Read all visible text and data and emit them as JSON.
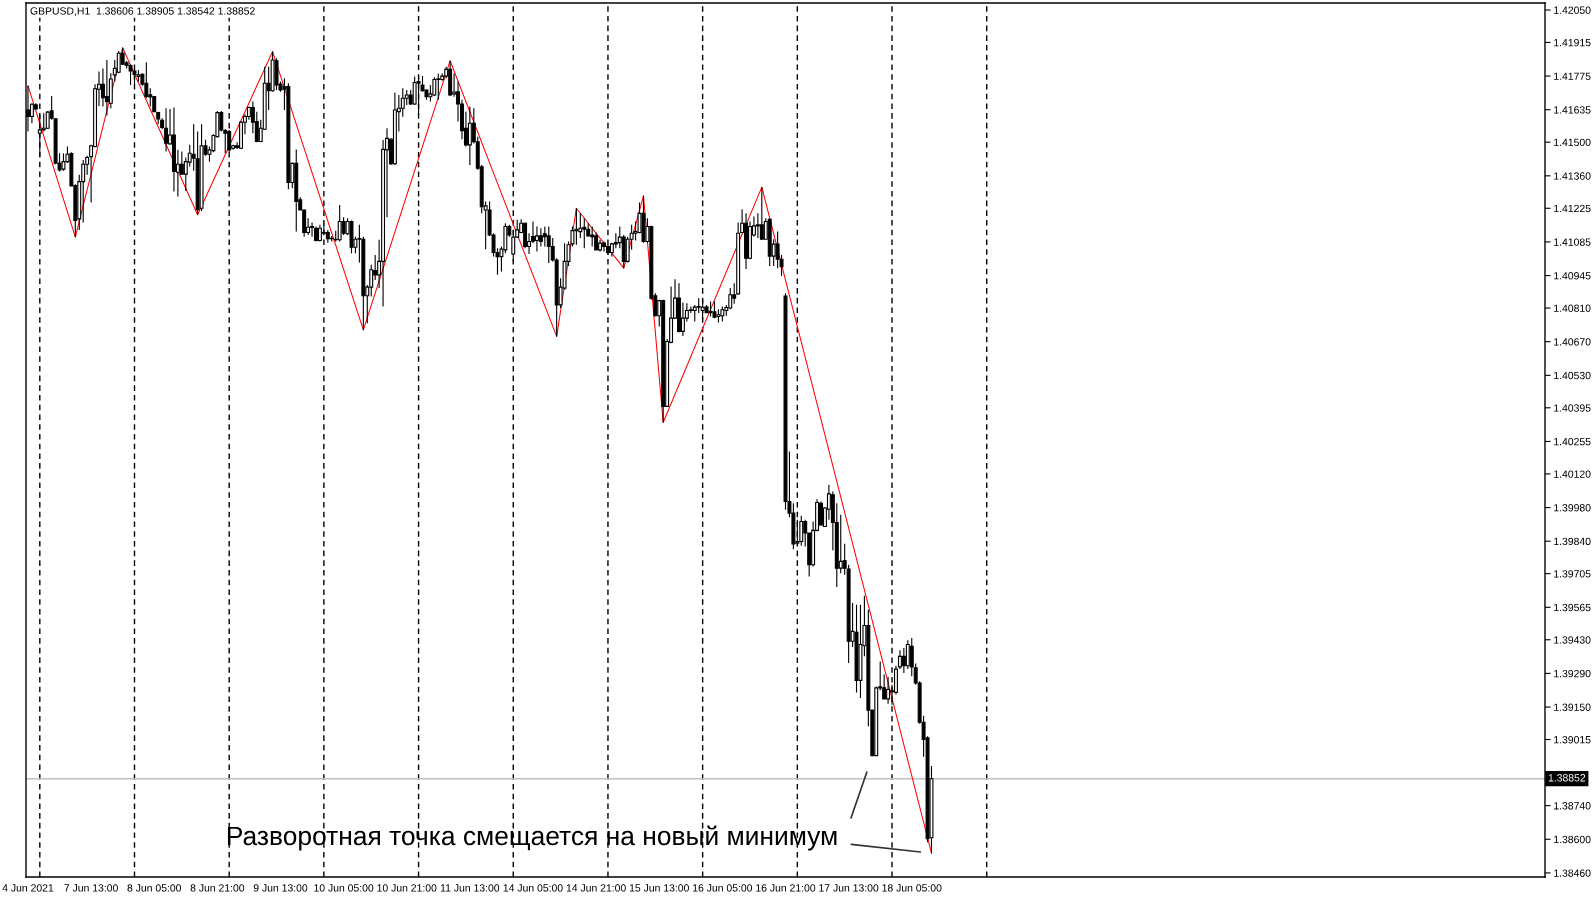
{
  "chart_data": {
    "type": "candlestick",
    "title": "GBPUSD,H1  1.38606 1.38905 1.38542 1.38852",
    "categories": [
      "4 Jun 2021",
      null,
      null,
      null,
      null,
      null,
      null,
      null,
      null,
      null,
      null,
      null,
      null,
      null,
      null,
      null,
      "7 Jun 13:00",
      null,
      null,
      null,
      null,
      null,
      null,
      null,
      null,
      null,
      null,
      null,
      null,
      null,
      null,
      null,
      "8 Jun 05:00",
      null,
      null,
      null,
      null,
      null,
      null,
      null,
      null,
      null,
      null,
      null,
      null,
      null,
      null,
      null,
      "8 Jun 21:00",
      null,
      null,
      null,
      null,
      null,
      null,
      null,
      null,
      null,
      null,
      null,
      null,
      null,
      null,
      null,
      "9 Jun 13:00",
      null,
      null,
      null,
      null,
      null,
      null,
      null,
      null,
      null,
      null,
      null,
      null,
      null,
      null,
      null,
      "10 Jun 05:00",
      null,
      null,
      null,
      null,
      null,
      null,
      null,
      null,
      null,
      null,
      null,
      null,
      null,
      null,
      null,
      "10 Jun 21:00",
      null,
      null,
      null,
      null,
      null,
      null,
      null,
      null,
      null,
      null,
      null,
      null,
      null,
      null,
      null,
      "11 Jun 13:00",
      null,
      null,
      null,
      null,
      null,
      null,
      null,
      null,
      null,
      null,
      null,
      null,
      null,
      null,
      null,
      "14 Jun 05:00",
      null,
      null,
      null,
      null,
      null,
      null,
      null,
      null,
      null,
      null,
      null,
      null,
      null,
      null,
      null,
      "14 Jun 21:00",
      null,
      null,
      null,
      null,
      null,
      null,
      null,
      null,
      null,
      null,
      null,
      null,
      null,
      null,
      null,
      "15 Jun 13:00",
      null,
      null,
      null,
      null,
      null,
      null,
      null,
      null,
      null,
      null,
      null,
      null,
      null,
      null,
      null,
      "16 Jun 05:00",
      null,
      null,
      null,
      null,
      null,
      null,
      null,
      null,
      null,
      null,
      null,
      null,
      null,
      null,
      null,
      "16 Jun 21:00",
      null,
      null,
      null,
      null,
      null,
      null,
      null,
      null,
      null,
      null,
      null,
      null,
      null,
      null,
      null,
      "17 Jun 13:00",
      null,
      null,
      null,
      null,
      null,
      null,
      null,
      null,
      null,
      null,
      null,
      null,
      null,
      null,
      null,
      "18 Jun 05:00",
      null,
      null,
      null,
      null,
      null,
      null,
      null,
      null,
      null,
      null,
      null,
      null,
      null,
      null,
      null,
      null,
      null,
      null,
      null,
      null,
      null,
      null,
      null,
      null,
      null,
      null,
      null,
      null,
      null,
      null,
      null,
      null,
      null,
      null,
      null,
      null,
      null,
      null,
      null,
      null,
      null,
      null,
      null,
      null,
      null,
      null,
      null,
      null,
      null,
      null,
      null,
      null,
      null,
      null,
      null,
      null,
      null,
      null,
      null,
      null,
      null,
      null,
      null,
      null,
      null,
      null,
      null,
      null,
      null,
      null,
      null,
      null,
      null,
      null,
      null,
      null,
      null,
      null,
      null,
      null,
      null,
      null,
      null,
      null,
      null,
      null,
      null,
      null,
      null,
      null,
      null,
      null,
      null,
      null,
      null,
      null,
      null,
      null,
      null,
      null,
      null,
      null,
      null,
      null,
      null,
      null,
      null,
      null,
      null,
      null,
      null,
      null,
      null,
      null,
      null,
      null,
      null,
      null,
      null,
      null,
      null,
      null,
      null,
      null,
      null,
      null,
      null,
      null,
      null,
      null,
      null,
      null,
      null,
      null,
      null,
      null,
      null,
      null,
      null,
      null,
      null,
      null,
      null,
      null,
      null,
      null,
      null,
      null,
      null,
      null,
      null,
      null,
      null,
      null,
      null,
      null,
      null,
      null,
      null,
      null
    ],
    "ohlc": [
      [
        1.41634,
        1.41735,
        1.41544,
        1.41607
      ],
      [
        1.41607,
        1.41662,
        1.41579,
        1.41658
      ],
      [
        1.41655,
        1.41662,
        1.41634,
        1.41638
      ],
      [
        1.41537,
        1.41613,
        1.4144,
        1.41551
      ],
      [
        1.41552,
        1.4162,
        1.41544,
        1.41558
      ],
      [
        1.41558,
        1.4163,
        1.41555,
        1.41625
      ],
      [
        1.4163,
        1.41692,
        1.41593,
        1.416
      ],
      [
        1.41597,
        1.416,
        1.41408,
        1.41413
      ],
      [
        1.41413,
        1.41454,
        1.41378,
        1.41385
      ],
      [
        1.41388,
        1.41454,
        1.41381,
        1.41419
      ],
      [
        1.41419,
        1.41482,
        1.41413,
        1.4145
      ],
      [
        1.41453,
        1.41458,
        1.41316,
        1.41318
      ],
      [
        1.4132,
        1.41325,
        1.41105,
        1.41174
      ],
      [
        1.41181,
        1.41364,
        1.41135,
        1.41336
      ],
      [
        1.41336,
        1.41426,
        1.41166,
        1.41408
      ],
      [
        1.41408,
        1.41444,
        1.41364,
        1.41436
      ],
      [
        1.4144,
        1.41489,
        1.41249,
        1.41485
      ],
      [
        1.41482,
        1.41741,
        1.41478,
        1.41722
      ],
      [
        1.4172,
        1.41794,
        1.41651,
        1.41741
      ],
      [
        1.41741,
        1.41807,
        1.41648,
        1.41685
      ],
      [
        1.4169,
        1.41842,
        1.41611,
        1.41669
      ],
      [
        1.41662,
        1.41787,
        1.41641,
        1.41763
      ],
      [
        1.4178,
        1.41842,
        1.41752,
        1.41807
      ],
      [
        1.41791,
        1.41879,
        1.41787,
        1.4187
      ],
      [
        1.4187,
        1.41893,
        1.41821,
        1.41824
      ],
      [
        1.4183,
        1.41838,
        1.41807,
        1.41819
      ],
      [
        1.41819,
        1.41824,
        1.41738,
        1.41796
      ],
      [
        1.41796,
        1.41807,
        1.41741,
        1.41782
      ],
      [
        1.41773,
        1.418,
        1.41752,
        1.4178
      ],
      [
        1.41782,
        1.41787,
        1.41735,
        1.41741
      ],
      [
        1.41745,
        1.41832,
        1.41683,
        1.4169
      ],
      [
        1.41697,
        1.41724,
        1.41648,
        1.41688
      ],
      [
        1.4169,
        1.41692,
        1.41625,
        1.41627
      ],
      [
        1.41623,
        1.41627,
        1.41575,
        1.41597
      ],
      [
        1.41591,
        1.416,
        1.41555,
        1.41561
      ],
      [
        1.41558,
        1.41641,
        1.41461,
        1.41496
      ],
      [
        1.41493,
        1.41638,
        1.41489,
        1.4153
      ],
      [
        1.4153,
        1.41644,
        1.41295,
        1.41378
      ],
      [
        1.41375,
        1.41468,
        1.41274,
        1.41408
      ],
      [
        1.41408,
        1.41461,
        1.41364,
        1.41367
      ],
      [
        1.41367,
        1.41436,
        1.41297,
        1.41419
      ],
      [
        1.41417,
        1.41489,
        1.41399,
        1.41454
      ],
      [
        1.4145,
        1.41575,
        1.41381,
        1.41433
      ],
      [
        1.41431,
        1.41544,
        1.41198,
        1.41219
      ],
      [
        1.41225,
        1.41575,
        1.41214,
        1.41485
      ],
      [
        1.41485,
        1.4151,
        1.41444,
        1.4145
      ],
      [
        1.4145,
        1.41482,
        1.41419,
        1.41468
      ],
      [
        1.41465,
        1.41533,
        1.41458,
        1.41528
      ],
      [
        1.41523,
        1.4163,
        1.41519,
        1.41623
      ],
      [
        1.41623,
        1.4163,
        1.41544,
        1.41551
      ],
      [
        1.41548,
        1.41555,
        1.41454,
        1.41537
      ],
      [
        1.41544,
        1.41551,
        1.41458,
        1.41468
      ],
      [
        1.41475,
        1.41489,
        1.41468,
        1.41485
      ],
      [
        1.41485,
        1.415,
        1.41472,
        1.41478
      ],
      [
        1.41475,
        1.41588,
        1.41472,
        1.41583
      ],
      [
        1.41583,
        1.41616,
        1.41533,
        1.41607
      ],
      [
        1.41607,
        1.41648,
        1.41593,
        1.41644
      ],
      [
        1.41644,
        1.41669,
        1.41537,
        1.41583
      ],
      [
        1.41586,
        1.41627,
        1.415,
        1.41503
      ],
      [
        1.41503,
        1.41593,
        1.415,
        1.41558
      ],
      [
        1.41554,
        1.41814,
        1.41551,
        1.41745
      ],
      [
        1.41745,
        1.41814,
        1.41634,
        1.41714
      ],
      [
        1.41714,
        1.41877,
        1.4171,
        1.41842
      ],
      [
        1.41839,
        1.41849,
        1.41717,
        1.41738
      ],
      [
        1.41742,
        1.41752,
        1.4171,
        1.41717
      ],
      [
        1.41731,
        1.41766,
        1.41634,
        1.4172
      ],
      [
        1.41731,
        1.41745,
        1.41304,
        1.41332
      ],
      [
        1.41332,
        1.41415,
        1.41308,
        1.41412
      ],
      [
        1.41412,
        1.4147,
        1.41128,
        1.41253
      ],
      [
        1.4126,
        1.41271,
        1.41216,
        1.41218
      ],
      [
        1.41218,
        1.41221,
        1.41107,
        1.41124
      ],
      [
        1.41124,
        1.41184,
        1.41114,
        1.41146
      ],
      [
        1.41145,
        1.41166,
        1.41107,
        1.41149
      ],
      [
        1.41142,
        1.41149,
        1.41087,
        1.41091
      ],
      [
        1.41091,
        1.41156,
        1.41087,
        1.41142
      ],
      [
        1.41124,
        1.41156,
        1.41119,
        1.41121
      ],
      [
        1.41124,
        1.41135,
        1.41082,
        1.41098
      ],
      [
        1.411,
        1.4111,
        1.41087,
        1.41098
      ],
      [
        1.41096,
        1.41132,
        1.41087,
        1.41094
      ],
      [
        1.41094,
        1.41239,
        1.41087,
        1.4117
      ],
      [
        1.4117,
        1.41188,
        1.41114,
        1.41121
      ],
      [
        1.41119,
        1.41184,
        1.41114,
        1.4117
      ],
      [
        1.4117,
        1.41174,
        1.41038,
        1.41063
      ],
      [
        1.41063,
        1.41107,
        1.41038,
        1.41096
      ],
      [
        1.41096,
        1.41156,
        1.40999,
        1.41099
      ],
      [
        1.41096,
        1.41107,
        1.40719,
        1.40861
      ],
      [
        1.40861,
        1.40906,
        1.40747,
        1.40897
      ],
      [
        1.40897,
        1.4099,
        1.40858,
        1.40969
      ],
      [
        1.40966,
        1.41031,
        1.40927,
        1.40948
      ],
      [
        1.40948,
        1.41094,
        1.40893,
        1.41004
      ],
      [
        1.41004,
        1.41509,
        1.40816,
        1.4147
      ],
      [
        1.41468,
        1.41558,
        1.41188,
        1.41516
      ],
      [
        1.41512,
        1.41516,
        1.41405,
        1.4141
      ],
      [
        1.4141,
        1.41706,
        1.41405,
        1.41634
      ],
      [
        1.41627,
        1.41696,
        1.41544,
        1.41641
      ],
      [
        1.41641,
        1.41724,
        1.41606,
        1.41683
      ],
      [
        1.41683,
        1.41717,
        1.41655,
        1.41696
      ],
      [
        1.41696,
        1.41717,
        1.41655,
        1.41659
      ],
      [
        1.41659,
        1.41773,
        1.41655,
        1.41748
      ],
      [
        1.41752,
        1.41775,
        1.41617,
        1.41745
      ],
      [
        1.41738,
        1.41775,
        1.4171,
        1.41714
      ],
      [
        1.41717,
        1.4172,
        1.41676,
        1.41689
      ],
      [
        1.41689,
        1.41738,
        1.41669,
        1.41701
      ],
      [
        1.41696,
        1.4177,
        1.41692,
        1.41761
      ],
      [
        1.41761,
        1.41786,
        1.41676,
        1.41764
      ],
      [
        1.41761,
        1.41786,
        1.41756,
        1.41775
      ],
      [
        1.41775,
        1.41814,
        1.41766,
        1.41803
      ],
      [
        1.41803,
        1.41839,
        1.41692,
        1.41696
      ],
      [
        1.41701,
        1.41786,
        1.41689,
        1.41709
      ],
      [
        1.4171,
        1.41752,
        1.41586,
        1.41659
      ],
      [
        1.41659,
        1.41676,
        1.41512,
        1.41548
      ],
      [
        1.41558,
        1.41627,
        1.41482,
        1.41489
      ],
      [
        1.41489,
        1.41648,
        1.41405,
        1.41579
      ],
      [
        1.41579,
        1.41641,
        1.41495,
        1.41502
      ],
      [
        1.41502,
        1.41523,
        1.41385,
        1.41392
      ],
      [
        1.41398,
        1.41405,
        1.41204,
        1.41232
      ],
      [
        1.41218,
        1.41253,
        1.41055,
        1.41235
      ],
      [
        1.41218,
        1.41253,
        1.4111,
        1.41114
      ],
      [
        1.41114,
        1.41121,
        1.41024,
        1.41041
      ],
      [
        1.41041,
        1.41059,
        1.40948,
        1.41024
      ],
      [
        1.41024,
        1.41066,
        1.40962,
        1.41055
      ],
      [
        1.41052,
        1.41163,
        1.41038,
        1.41149
      ],
      [
        1.41149,
        1.41156,
        1.41107,
        1.41114
      ],
      [
        1.41035,
        1.41135,
        1.41004,
        1.41105
      ],
      [
        1.41105,
        1.41177,
        1.41101,
        1.41135
      ],
      [
        1.41124,
        1.41179,
        1.41121,
        1.41163
      ],
      [
        1.41163,
        1.41166,
        1.41059,
        1.41066
      ],
      [
        1.41066,
        1.41121,
        1.41035,
        1.41087
      ],
      [
        1.41107,
        1.4117,
        1.4108,
        1.41088
      ],
      [
        1.41091,
        1.41149,
        1.41045,
        1.4111
      ],
      [
        1.4111,
        1.41142,
        1.41066,
        1.41087
      ],
      [
        1.41119,
        1.41149,
        1.41066,
        1.41107
      ],
      [
        1.4111,
        1.41149,
        1.40997,
        1.41066
      ],
      [
        1.41066,
        1.41101,
        1.41004,
        1.4101
      ],
      [
        1.4101,
        1.41017,
        1.40692,
        1.40823
      ],
      [
        1.40823,
        1.40934,
        1.4081,
        1.40897
      ],
      [
        1.40893,
        1.4108,
        1.40886,
        1.41004
      ],
      [
        1.41004,
        1.41087,
        1.40985,
        1.41073
      ],
      [
        1.41077,
        1.41149,
        1.41066,
        1.41132
      ],
      [
        1.41132,
        1.41225,
        1.41073,
        1.41138
      ],
      [
        1.41128,
        1.41204,
        1.41101,
        1.41142
      ],
      [
        1.41146,
        1.41184,
        1.41059,
        1.41138
      ],
      [
        1.41138,
        1.41163,
        1.41107,
        1.4111
      ],
      [
        1.41114,
        1.41149,
        1.41066,
        1.41107
      ],
      [
        1.4111,
        1.41124,
        1.41049,
        1.41052
      ],
      [
        1.41052,
        1.41094,
        1.41045,
        1.4108
      ],
      [
        1.4108,
        1.41087,
        1.41045,
        1.41066
      ],
      [
        1.41066,
        1.41073,
        1.41031,
        1.41041
      ],
      [
        1.41041,
        1.41082,
        1.41024,
        1.41077
      ],
      [
        1.41077,
        1.41121,
        1.41059,
        1.41082
      ],
      [
        1.41082,
        1.41149,
        1.41059,
        1.41105
      ],
      [
        1.41105,
        1.41114,
        1.40976,
        1.41004
      ],
      [
        1.41004,
        1.41107,
        1.40999,
        1.41096
      ],
      [
        1.41096,
        1.41156,
        1.41052,
        1.41121
      ],
      [
        1.41121,
        1.4117,
        1.41091,
        1.41128
      ],
      [
        1.41124,
        1.41249,
        1.41121,
        1.41204
      ],
      [
        1.41204,
        1.41277,
        1.41082,
        1.41087
      ],
      [
        1.41087,
        1.41184,
        1.41082,
        1.41149
      ],
      [
        1.41149,
        1.41152,
        1.40844,
        1.40851
      ],
      [
        1.40861,
        1.40872,
        1.40775,
        1.40778
      ],
      [
        1.40778,
        1.40844,
        1.40733,
        1.40841
      ],
      [
        1.40841,
        1.40844,
        1.40334,
        1.40401
      ],
      [
        1.40401,
        1.40681,
        1.40398,
        1.40671
      ],
      [
        1.40667,
        1.409,
        1.40664,
        1.40768
      ],
      [
        1.40768,
        1.4093,
        1.40764,
        1.40851
      ],
      [
        1.40851,
        1.40913,
        1.40708,
        1.40713
      ],
      [
        1.40713,
        1.40833,
        1.40694,
        1.40768
      ],
      [
        1.40768,
        1.4083,
        1.40754,
        1.408
      ],
      [
        1.408,
        1.40816,
        1.40789,
        1.40803
      ],
      [
        1.408,
        1.40823,
        1.40754,
        1.40814
      ],
      [
        1.40814,
        1.40851,
        1.40789,
        1.40816
      ],
      [
        1.408,
        1.40847,
        1.40761,
        1.40814
      ],
      [
        1.40814,
        1.40823,
        1.40789,
        1.40791
      ],
      [
        1.40796,
        1.40837,
        1.40775,
        1.40791
      ],
      [
        1.40794,
        1.40837,
        1.40768,
        1.40772
      ],
      [
        1.40775,
        1.40805,
        1.4075,
        1.40782
      ],
      [
        1.40778,
        1.40816,
        1.40754,
        1.40803
      ],
      [
        1.408,
        1.40823,
        1.40778,
        1.40812
      ],
      [
        1.4081,
        1.40893,
        1.40805,
        1.40865
      ],
      [
        1.40865,
        1.40913,
        1.40828,
        1.40851
      ],
      [
        1.40869,
        1.41166,
        1.40865,
        1.41121
      ],
      [
        1.41124,
        1.41221,
        1.41121,
        1.41163
      ],
      [
        1.41163,
        1.41204,
        1.40972,
        1.41017
      ],
      [
        1.41017,
        1.4117,
        1.41013,
        1.41149
      ],
      [
        1.41114,
        1.41191,
        1.41107,
        1.41152
      ],
      [
        1.41152,
        1.41204,
        1.41101,
        1.41156
      ],
      [
        1.41156,
        1.41313,
        1.41094,
        1.41096
      ],
      [
        1.41096,
        1.41184,
        1.41094,
        1.4117
      ],
      [
        1.41179,
        1.41183,
        1.40985,
        1.41026
      ],
      [
        1.41026,
        1.41096,
        1.40985,
        1.41076
      ],
      [
        1.41076,
        1.41128,
        1.40975,
        1.41013
      ],
      [
        1.41013,
        1.41031,
        1.40943,
        1.40982
      ],
      [
        1.4086,
        1.40871,
        1.39971,
        1.40005
      ],
      [
        1.40005,
        1.40213,
        1.3994,
        1.39957
      ],
      [
        1.39957,
        1.39998,
        1.39807,
        1.39829
      ],
      [
        1.39832,
        1.39929,
        1.39829,
        1.39838
      ],
      [
        1.39839,
        1.39946,
        1.39821,
        1.39922
      ],
      [
        1.39922,
        1.39929,
        1.39818,
        1.39874
      ],
      [
        1.39874,
        1.39876,
        1.39693,
        1.39742
      ],
      [
        1.39742,
        1.39922,
        1.39735,
        1.39885
      ],
      [
        1.39885,
        1.40015,
        1.39881,
        1.40001
      ],
      [
        1.39998,
        1.40005,
        1.39904,
        1.39908
      ],
      [
        1.39901,
        1.39982,
        1.39899,
        1.39978
      ],
      [
        1.39973,
        1.40075,
        1.39929,
        1.40037
      ],
      [
        1.40033,
        1.40047,
        1.39802,
        1.39918
      ],
      [
        1.39918,
        1.39998,
        1.39649,
        1.39728
      ],
      [
        1.39728,
        1.3995,
        1.39707,
        1.39756
      ],
      [
        1.39759,
        1.39829,
        1.397,
        1.39728
      ],
      [
        1.39724,
        1.39742,
        1.39333,
        1.39424
      ],
      [
        1.39424,
        1.39583,
        1.394,
        1.39465
      ],
      [
        1.39461,
        1.39576,
        1.39211,
        1.39261
      ],
      [
        1.39261,
        1.39576,
        1.39188,
        1.3941
      ],
      [
        1.39405,
        1.39613,
        1.39361,
        1.39489
      ],
      [
        1.39489,
        1.39555,
        1.3907,
        1.39137
      ],
      [
        1.39137,
        1.39139,
        1.38945,
        1.38948
      ],
      [
        1.38948,
        1.39236,
        1.38945,
        1.3923
      ],
      [
        1.3923,
        1.3934,
        1.3922,
        1.39234
      ],
      [
        1.3923,
        1.39285,
        1.39181,
        1.39184
      ],
      [
        1.39184,
        1.39275,
        1.39164,
        1.39223
      ],
      [
        1.39214,
        1.39243,
        1.3916,
        1.39218
      ],
      [
        1.39211,
        1.39322,
        1.39202,
        1.39308
      ],
      [
        1.39317,
        1.39386,
        1.39308,
        1.39361
      ],
      [
        1.39361,
        1.39396,
        1.39292,
        1.39322
      ],
      [
        1.39322,
        1.39428,
        1.39308,
        1.3941
      ],
      [
        1.39403,
        1.39437,
        1.39278,
        1.39317
      ],
      [
        1.39313,
        1.39331,
        1.39243,
        1.3925
      ],
      [
        1.3925,
        1.39257,
        1.39081,
        1.39087
      ],
      [
        1.39087,
        1.39114,
        1.38943,
        1.39015
      ],
      [
        1.39022,
        1.39029,
        1.38588,
        1.38602
      ],
      [
        1.38606,
        1.38905,
        1.38542,
        1.38852
      ],
      null,
      null,
      null,
      null,
      null,
      null,
      null,
      null,
      null,
      null,
      null,
      null,
      null,
      null,
      null,
      null,
      null,
      null,
      null,
      null,
      null,
      null,
      null,
      null,
      null,
      null,
      null,
      null,
      null,
      null,
      null,
      null,
      null,
      null,
      null,
      null,
      null,
      null,
      null,
      null,
      null,
      null,
      null,
      null,
      null,
      null,
      null,
      null,
      null,
      null,
      null,
      null,
      null,
      null,
      null,
      null,
      null,
      null,
      null,
      null,
      null,
      null,
      null,
      null,
      null,
      null,
      null,
      null,
      null,
      null,
      null,
      null,
      null,
      null,
      null,
      null,
      null,
      null,
      null,
      null,
      null,
      null,
      null,
      null,
      null,
      null,
      null,
      null,
      null,
      null,
      null,
      null,
      null,
      null,
      null,
      null,
      null,
      null,
      null,
      null,
      null,
      null,
      null,
      null,
      null,
      null,
      null,
      null,
      null,
      null,
      null,
      null,
      null,
      null,
      null,
      null,
      null,
      null,
      null,
      null,
      null,
      null,
      null,
      null,
      null,
      null,
      null,
      null,
      null,
      null,
      null,
      null,
      null,
      null,
      null,
      null,
      null,
      null,
      null,
      null,
      null,
      null,
      null,
      null,
      null,
      null,
      null,
      null,
      null,
      null,
      null,
      null,
      null,
      null,
      null
    ],
    "series": [
      {
        "type": "line",
        "color": "#ff0000",
        "values": [
          1.41735,
          null,
          null,
          null,
          null,
          null,
          null,
          null,
          null,
          null,
          null,
          null,
          1.41105,
          null,
          null,
          null,
          null,
          null,
          null,
          null,
          null,
          null,
          null,
          null,
          1.41893,
          null,
          null,
          null,
          null,
          null,
          null,
          null,
          null,
          null,
          null,
          null,
          null,
          null,
          null,
          null,
          null,
          null,
          null,
          1.41198,
          null,
          null,
          null,
          null,
          null,
          null,
          null,
          null,
          null,
          null,
          null,
          null,
          null,
          null,
          null,
          null,
          null,
          null,
          1.41877,
          null,
          null,
          null,
          null,
          null,
          null,
          null,
          null,
          null,
          null,
          null,
          null,
          null,
          null,
          null,
          null,
          null,
          null,
          null,
          null,
          null,
          null,
          1.40719,
          null,
          null,
          null,
          null,
          null,
          null,
          null,
          null,
          null,
          null,
          null,
          null,
          null,
          null,
          null,
          null,
          null,
          null,
          null,
          null,
          null,
          1.41839,
          null,
          null,
          null,
          null,
          null,
          null,
          null,
          null,
          null,
          null,
          null,
          null,
          null,
          null,
          null,
          null,
          null,
          null,
          null,
          null,
          null,
          null,
          null,
          null,
          null,
          null,
          1.40692,
          null,
          null,
          null,
          null,
          1.41225,
          null,
          null,
          null,
          null,
          null,
          null,
          null,
          null,
          null,
          null,
          null,
          1.40976,
          null,
          null,
          null,
          null,
          1.41277,
          null,
          null,
          null,
          null,
          1.40334,
          null,
          null,
          null,
          null,
          null,
          null,
          null,
          null,
          null,
          null,
          null,
          null,
          null,
          null,
          null,
          null,
          null,
          null,
          null,
          null,
          null,
          null,
          null,
          null,
          1.41313,
          null,
          null,
          null,
          null,
          null,
          null,
          null,
          null,
          null,
          null,
          null,
          null,
          null,
          null,
          null,
          null,
          null,
          null,
          null,
          null,
          null,
          null,
          null,
          null,
          null,
          null,
          null,
          null,
          null,
          null,
          null,
          null,
          null,
          null,
          null,
          null,
          null,
          null,
          null,
          null,
          null,
          null,
          1.38542,
          null,
          null,
          null,
          null,
          null,
          null,
          null,
          null,
          null,
          null,
          null,
          null,
          null,
          null,
          null,
          null,
          null,
          null,
          null,
          null,
          null,
          null,
          null,
          null,
          null,
          null,
          null,
          null,
          null,
          null,
          null,
          null,
          null,
          null,
          null,
          null,
          null,
          null,
          null,
          null,
          null,
          null,
          null,
          null,
          null,
          null,
          null,
          null,
          null,
          null,
          null,
          null,
          null,
          null,
          null,
          null,
          null,
          null,
          null,
          null,
          null,
          null,
          null,
          null,
          null,
          null,
          null,
          null,
          null,
          null,
          null,
          null,
          null,
          null,
          null,
          null,
          null,
          null,
          null,
          null,
          null,
          null,
          null,
          null,
          null,
          null,
          null,
          null,
          null,
          null,
          null,
          null,
          null,
          null,
          null,
          null,
          null,
          null,
          null,
          null,
          null,
          null,
          null,
          null,
          null,
          null,
          null,
          null,
          null,
          null,
          null,
          null,
          null,
          null,
          null,
          null,
          null,
          null,
          null,
          null,
          null,
          null,
          null,
          null,
          null,
          null,
          null,
          null,
          null,
          null,
          null,
          null,
          null,
          null,
          null,
          null,
          null,
          null,
          null,
          null,
          null,
          null,
          null,
          null,
          null,
          null,
          null,
          null,
          null,
          null,
          null,
          null,
          null,
          null,
          null
        ]
      }
    ],
    "ylim": [
      1.38443,
      1.42079
    ],
    "yticks": [
      {
        "value": 1.4205,
        "label": "1.42050"
      },
      1.41915,
      1.41775,
      1.41635,
      {
        "value": 1.415,
        "label": "1.41500"
      },
      {
        "value": 1.4136,
        "label": "1.41360"
      },
      1.41225,
      1.41085,
      1.40945,
      {
        "value": 1.4081,
        "label": "1.40810"
      },
      {
        "value": 1.4067,
        "label": "1.40670"
      },
      {
        "value": 1.4053,
        "label": "1.40530"
      },
      1.40395,
      1.40255,
      {
        "value": 1.4012,
        "label": "1.40120"
      },
      {
        "value": 1.3998,
        "label": "1.39980"
      },
      {
        "value": 1.3984,
        "label": "1.39840"
      },
      1.39705,
      1.39565,
      {
        "value": 1.3943,
        "label": "1.39430"
      },
      {
        "value": 1.3929,
        "label": "1.39290"
      },
      {
        "value": 1.3915,
        "label": "1.39150"
      },
      1.39015,
      {
        "value": 1.3874,
        "label": "1.38740"
      },
      {
        "value": 1.386,
        "label": "1.38600"
      },
      {
        "value": 1.3846,
        "label": "1.38460"
      }
    ],
    "ref_lines": [
      {
        "axis": "y",
        "value": 1.38852,
        "label": "1.38852",
        "color": "#c0c0c0"
      }
    ],
    "annotations": [
      "Разворотная точка смещается на новый минимум"
    ]
  }
}
